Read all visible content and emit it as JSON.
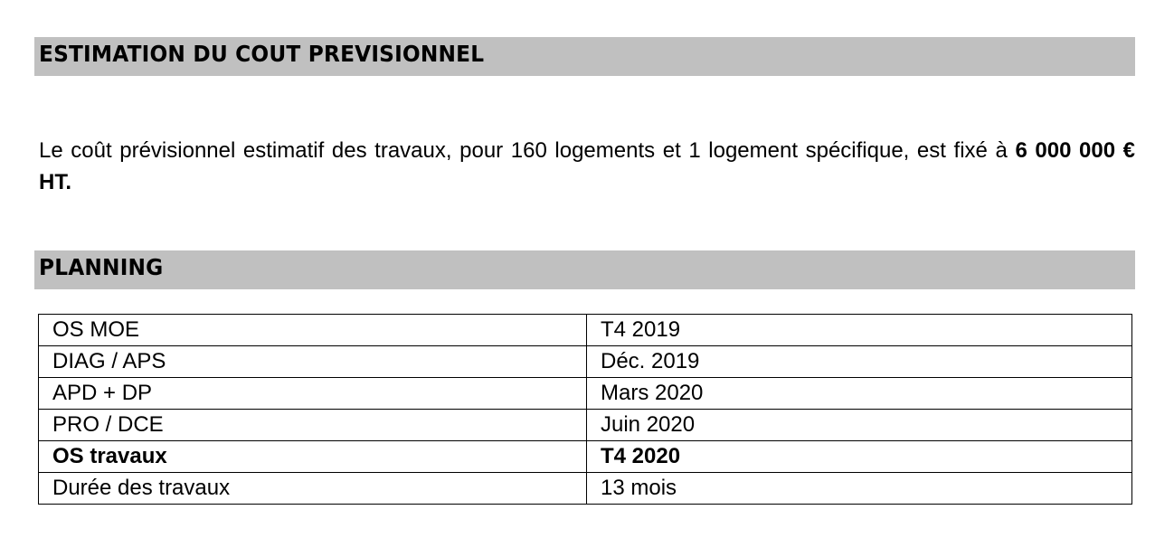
{
  "sections": {
    "cost": {
      "title": "ESTIMATION DU COUT PREVISIONNEL",
      "text": "Le coût prévisionnel estimatif des travaux, pour 160 logements et 1 logement spécifique, est fixé à ",
      "amount": "6 000 000 € HT."
    },
    "planning": {
      "title": "PLANNING",
      "rows": [
        {
          "phase": "OS MOE",
          "date": "T4 2019",
          "bold": false
        },
        {
          "phase": "DIAG / APS",
          "date": "Déc. 2019",
          "bold": false
        },
        {
          "phase": "APD + DP",
          "date": "Mars 2020",
          "bold": false
        },
        {
          "phase": "PRO / DCE",
          "date": "Juin 2020",
          "bold": false
        },
        {
          "phase": "OS travaux",
          "date": "T4 2020",
          "bold": true
        },
        {
          "phase": "Durée des travaux",
          "date": "13 mois",
          "bold": false
        }
      ]
    }
  },
  "colors": {
    "header_bar": "#c0c0c0"
  }
}
